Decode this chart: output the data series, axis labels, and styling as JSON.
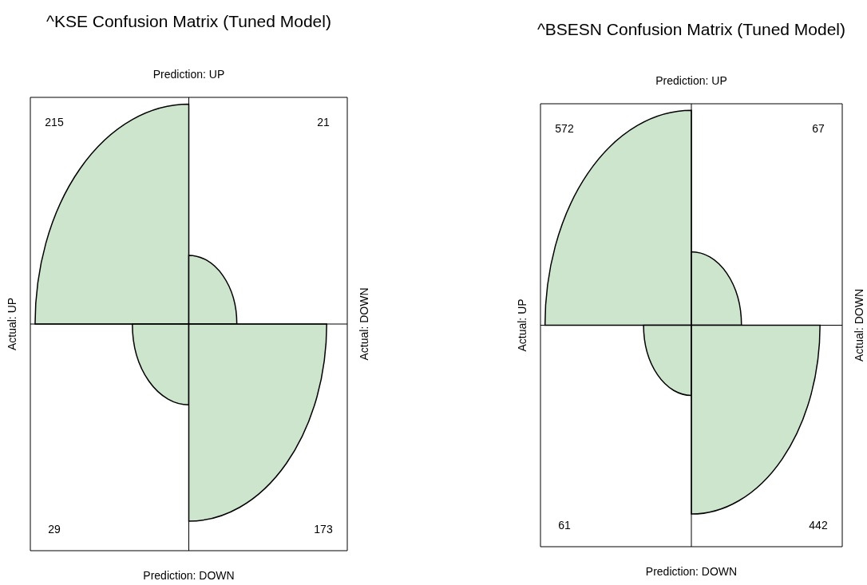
{
  "chart_data": [
    {
      "type": "other",
      "title": "^KSE Confusion Matrix (Tuned Model)",
      "x2label": "Prediction: UP",
      "xlabel": "Prediction: DOWN",
      "ylabel": "Actual: UP",
      "y2label": "Actual: DOWN",
      "categories": [
        null,
        null,
        null,
        null
      ],
      "values": [
        215,
        21,
        29,
        173
      ],
      "data_labels": true,
      "color": "#cce5cc"
    },
    {
      "type": "other",
      "title": "^BSESN Confusion Matrix (Tuned Model)",
      "x2label": "Prediction: UP",
      "xlabel": "Prediction: DOWN",
      "ylabel": "Actual: UP",
      "y2label": "Actual: DOWN",
      "categories": [
        null,
        null,
        null,
        null
      ],
      "values": [
        572,
        67,
        61,
        442
      ],
      "data_labels": true,
      "color": "#cce5cc"
    }
  ]
}
